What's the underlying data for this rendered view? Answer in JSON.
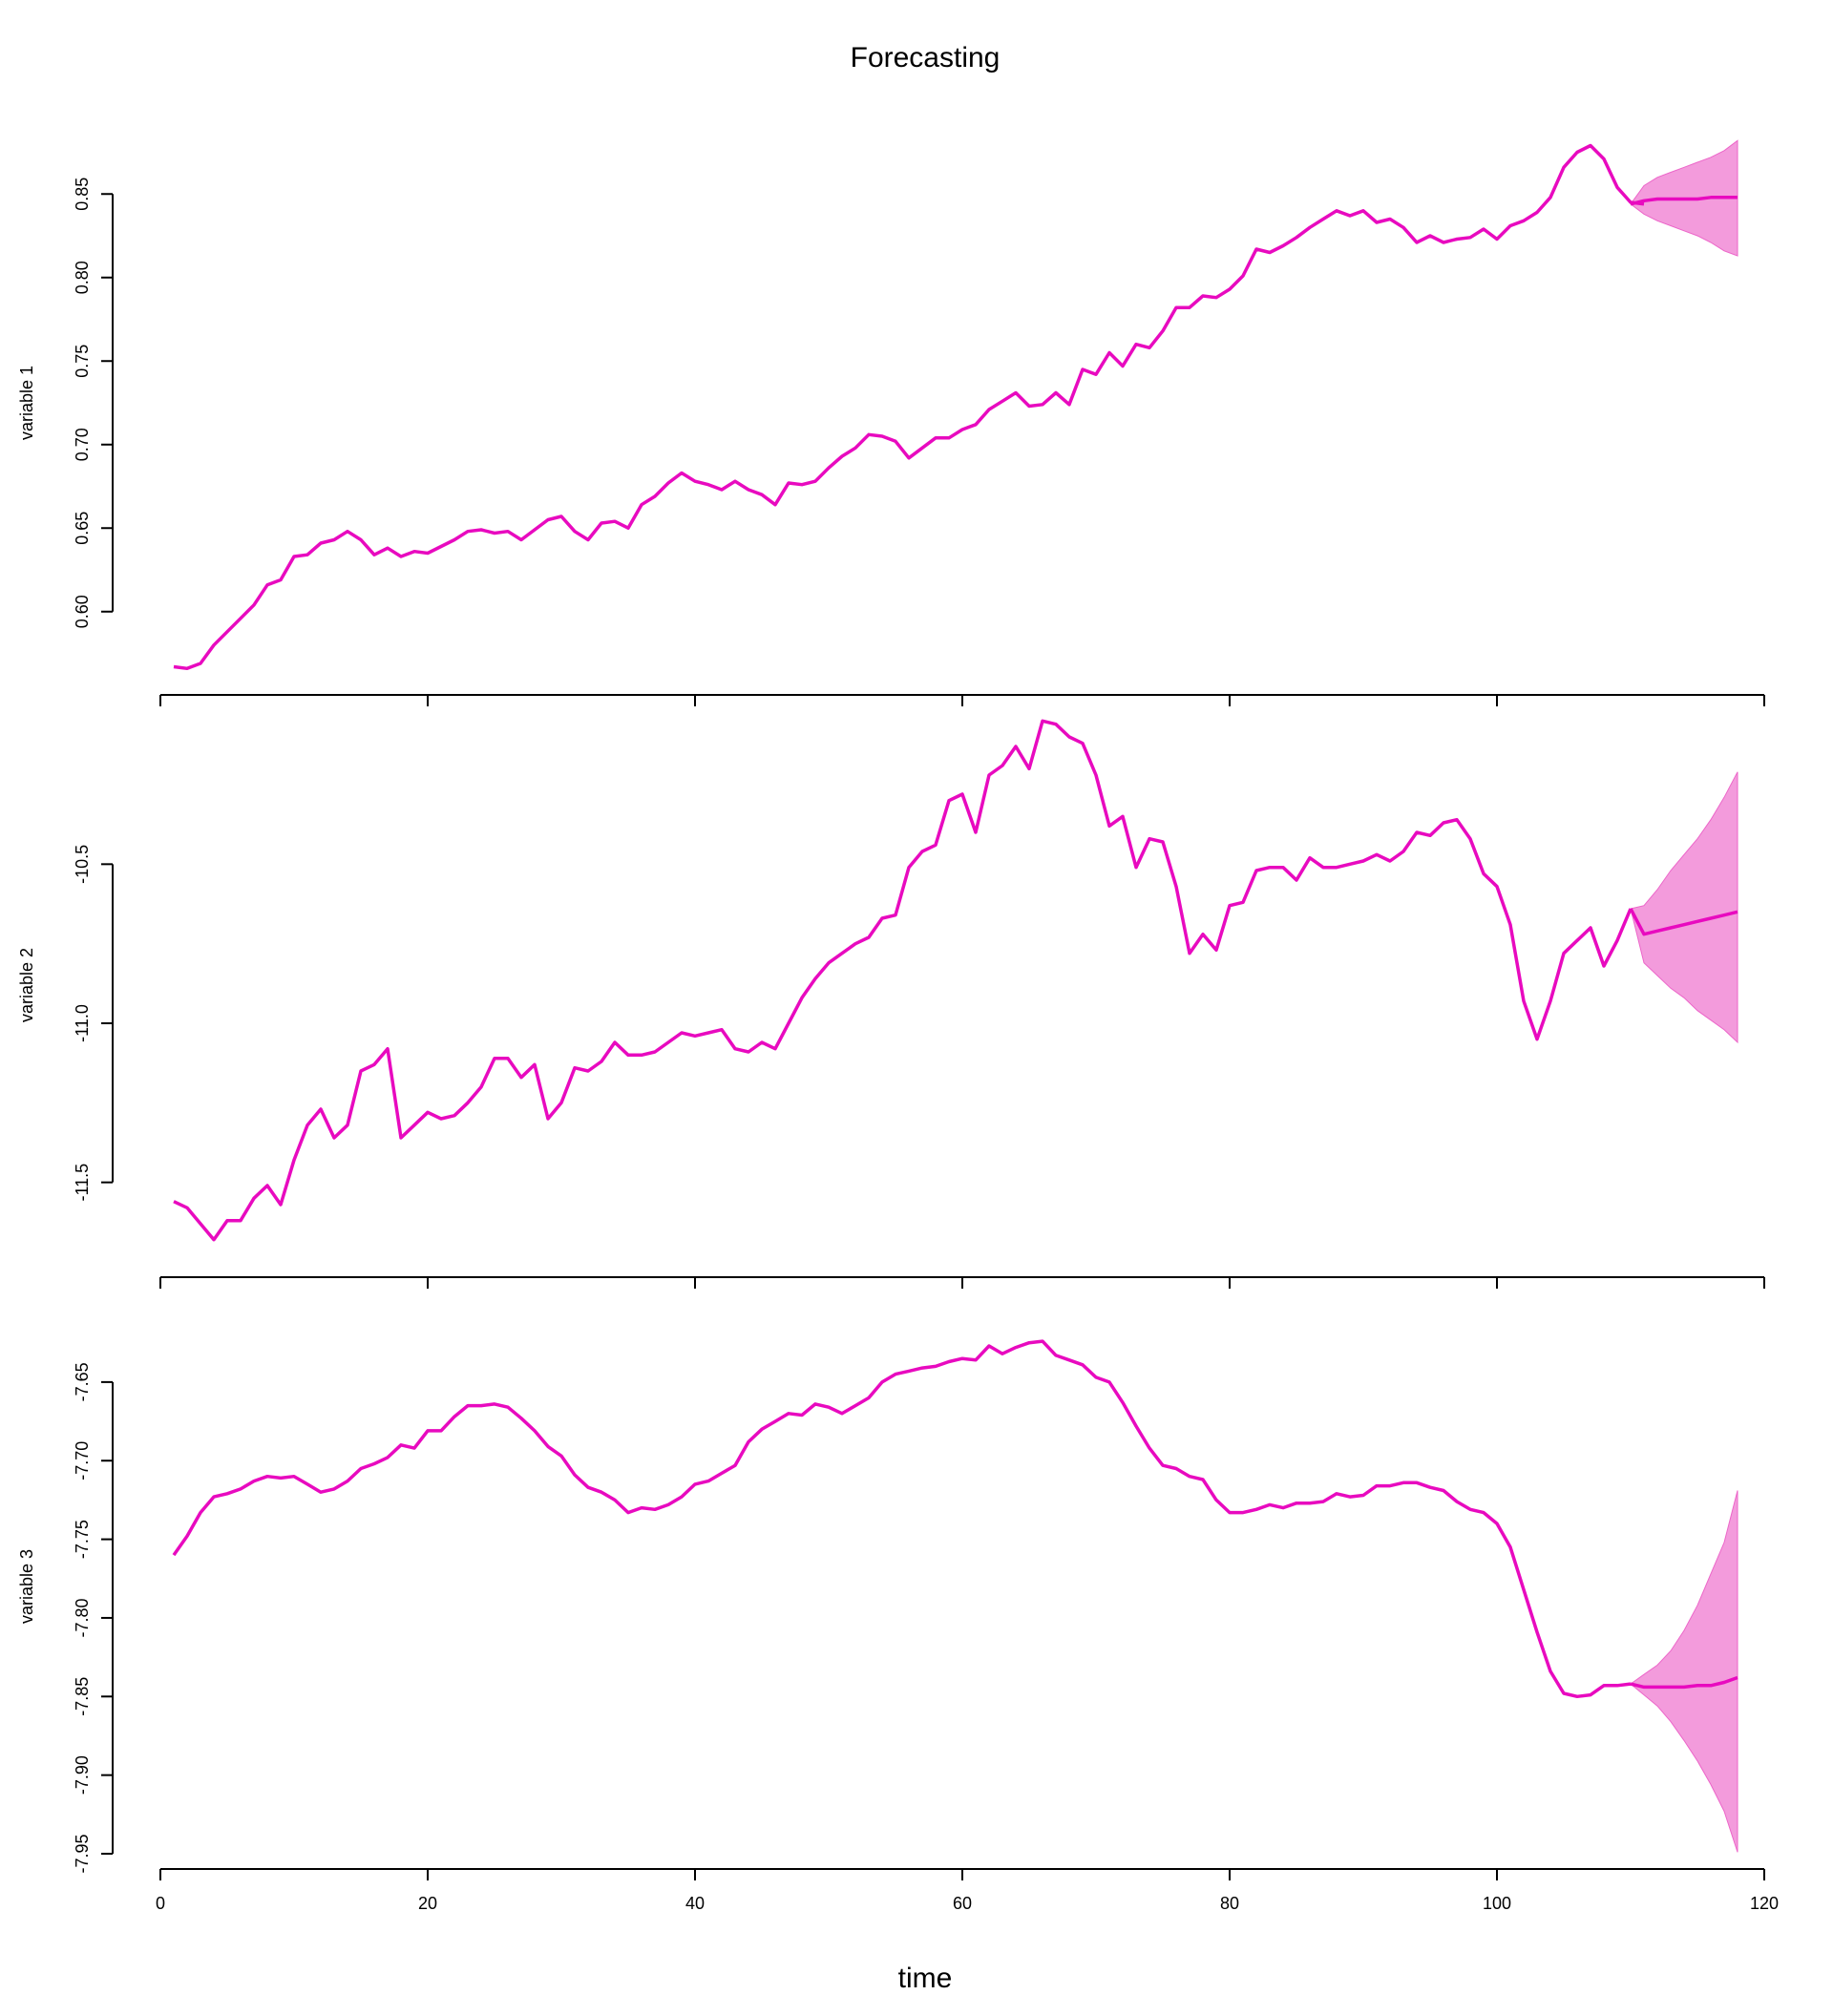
{
  "chart_data": {
    "type": "line",
    "title": "Forecasting",
    "xlabel": "time",
    "xlim": [
      0,
      120
    ],
    "xticks": [
      0,
      20,
      40,
      60,
      80,
      100,
      120
    ],
    "line_color": "#E80ABF",
    "band_color": "#EC66C9",
    "grid": false,
    "panels": [
      {
        "ylabel": "variable 1",
        "ylim": [
          0.565,
          0.885
        ],
        "yticks": [
          0.6,
          0.65,
          0.7,
          0.75,
          0.8,
          0.85
        ],
        "ytick_labels": [
          "0.60",
          "0.65",
          "0.70",
          "0.75",
          "0.80",
          "0.85"
        ],
        "history_x_start": 1,
        "history": [
          0.567,
          0.566,
          0.569,
          0.58,
          0.588,
          0.596,
          0.604,
          0.616,
          0.619,
          0.633,
          0.634,
          0.641,
          0.643,
          0.648,
          0.643,
          0.634,
          0.638,
          0.633,
          0.636,
          0.635,
          0.639,
          0.643,
          0.648,
          0.649,
          0.647,
          0.648,
          0.643,
          0.649,
          0.655,
          0.657,
          0.648,
          0.643,
          0.653,
          0.654,
          0.65,
          0.664,
          0.669,
          0.677,
          0.683,
          0.678,
          0.676,
          0.673,
          0.678,
          0.673,
          0.67,
          0.664,
          0.677,
          0.676,
          0.678,
          0.686,
          0.693,
          0.698,
          0.706,
          0.705,
          0.702,
          0.692,
          0.698,
          0.704,
          0.704,
          0.709,
          0.712,
          0.721,
          0.726,
          0.731,
          0.723,
          0.724,
          0.731,
          0.724,
          0.745,
          0.742,
          0.755,
          0.747,
          0.76,
          0.758,
          0.768,
          0.782,
          0.782,
          0.789,
          0.788,
          0.793,
          0.801,
          0.817,
          0.815,
          0.819,
          0.824,
          0.83,
          0.835,
          0.84,
          0.837,
          0.84,
          0.833,
          0.835,
          0.83,
          0.821,
          0.825,
          0.821,
          0.823,
          0.824,
          0.829,
          0.823,
          0.831,
          0.834,
          0.839,
          0.848,
          0.866,
          0.875,
          0.879,
          0.871,
          0.854,
          0.845,
          0.844
        ],
        "forecast_x_start": 110,
        "forecast": [
          0.844,
          0.846,
          0.847,
          0.847,
          0.847,
          0.847,
          0.848,
          0.848,
          0.848
        ],
        "lower": [
          0.844,
          0.838,
          0.834,
          0.831,
          0.828,
          0.825,
          0.821,
          0.816,
          0.813
        ],
        "upper": [
          0.844,
          0.855,
          0.86,
          0.863,
          0.866,
          0.869,
          0.872,
          0.876,
          0.882
        ]
      },
      {
        "ylabel": "variable 2",
        "ylim": [
          -11.72,
          -10.04
        ],
        "yticks": [
          -11.5,
          -11.0,
          -10.5
        ],
        "ytick_labels": [
          "-11.5",
          "-11.0",
          "-10.5"
        ],
        "history_x_start": 1,
        "history": [
          -11.56,
          -11.58,
          -11.63,
          -11.68,
          -11.62,
          -11.62,
          -11.55,
          -11.51,
          -11.57,
          -11.43,
          -11.32,
          -11.27,
          -11.36,
          -11.32,
          -11.15,
          -11.13,
          -11.08,
          -11.36,
          -11.32,
          -11.28,
          -11.3,
          -11.29,
          -11.25,
          -11.2,
          -11.11,
          -11.11,
          -11.17,
          -11.13,
          -11.3,
          -11.25,
          -11.14,
          -11.15,
          -11.12,
          -11.06,
          -11.1,
          -11.1,
          -11.09,
          -11.06,
          -11.03,
          -11.04,
          -11.03,
          -11.02,
          -11.08,
          -11.09,
          -11.06,
          -11.08,
          -11.0,
          -10.92,
          -10.86,
          -10.81,
          -10.78,
          -10.75,
          -10.73,
          -10.67,
          -10.66,
          -10.51,
          -10.46,
          -10.44,
          -10.3,
          -10.28,
          -10.4,
          -10.22,
          -10.19,
          -10.13,
          -10.2,
          -10.05,
          -10.06,
          -10.1,
          -10.12,
          -10.22,
          -10.38,
          -10.35,
          -10.51,
          -10.42,
          -10.43,
          -10.57,
          -10.78,
          -10.72,
          -10.77,
          -10.63,
          -10.62,
          -10.52,
          -10.51,
          -10.51,
          -10.55,
          -10.48,
          -10.51,
          -10.51,
          -10.5,
          -10.49,
          -10.47,
          -10.49,
          -10.46,
          -10.4,
          -10.41,
          -10.37,
          -10.36,
          -10.42,
          -10.53,
          -10.57,
          -10.69,
          -10.93,
          -11.05,
          -10.93,
          -10.78,
          -10.74,
          -10.7,
          -10.82,
          -10.74,
          -10.64
        ],
        "forecast_x_start": 110,
        "forecast": [
          -10.64,
          -10.72,
          -10.71,
          -10.7,
          -10.69,
          -10.68,
          -10.67,
          -10.66,
          -10.65
        ],
        "lower": [
          -10.64,
          -10.81,
          -10.85,
          -10.89,
          -10.92,
          -10.96,
          -10.99,
          -11.02,
          -11.06
        ],
        "upper": [
          -10.64,
          -10.63,
          -10.58,
          -10.52,
          -10.47,
          -10.42,
          -10.36,
          -10.29,
          -10.21
        ]
      },
      {
        "ylabel": "variable 3",
        "ylim": [
          -7.95,
          -7.61
        ],
        "yticks": [
          -7.95,
          -7.9,
          -7.85,
          -7.8,
          -7.75,
          -7.7,
          -7.65
        ],
        "ytick_labels": [
          "-7.95",
          "-7.90",
          "-7.85",
          "-7.80",
          "-7.75",
          "-7.70",
          "-7.65"
        ],
        "history_x_start": 1,
        "history": [
          -7.76,
          -7.748,
          -7.733,
          -7.723,
          -7.721,
          -7.718,
          -7.713,
          -7.71,
          -7.711,
          -7.71,
          -7.715,
          -7.72,
          -7.718,
          -7.713,
          -7.705,
          -7.702,
          -7.698,
          -7.69,
          -7.692,
          -7.681,
          -7.681,
          -7.672,
          -7.665,
          -7.665,
          -7.664,
          -7.666,
          -7.673,
          -7.681,
          -7.691,
          -7.697,
          -7.709,
          -7.717,
          -7.72,
          -7.725,
          -7.733,
          -7.73,
          -7.731,
          -7.728,
          -7.723,
          -7.715,
          -7.713,
          -7.708,
          -7.703,
          -7.688,
          -7.68,
          -7.675,
          -7.67,
          -7.671,
          -7.664,
          -7.666,
          -7.67,
          -7.665,
          -7.66,
          -7.65,
          -7.645,
          -7.643,
          -7.641,
          -7.64,
          -7.637,
          -7.635,
          -7.636,
          -7.627,
          -7.632,
          -7.628,
          -7.625,
          -7.624,
          -7.633,
          -7.636,
          -7.639,
          -7.647,
          -7.65,
          -7.663,
          -7.678,
          -7.692,
          -7.703,
          -7.705,
          -7.71,
          -7.712,
          -7.725,
          -7.733,
          -7.733,
          -7.731,
          -7.728,
          -7.73,
          -7.727,
          -7.727,
          -7.726,
          -7.721,
          -7.723,
          -7.722,
          -7.716,
          -7.716,
          -7.714,
          -7.714,
          -7.717,
          -7.719,
          -7.726,
          -7.731,
          -7.733,
          -7.74,
          -7.755,
          -7.782,
          -7.809,
          -7.834,
          -7.848,
          -7.85,
          -7.849,
          -7.843,
          -7.843,
          -7.842
        ],
        "forecast_x_start": 110,
        "forecast": [
          -7.842,
          -7.844,
          -7.844,
          -7.844,
          -7.844,
          -7.843,
          -7.843,
          -7.841,
          -7.838
        ],
        "lower": [
          -7.842,
          -7.849,
          -7.856,
          -7.866,
          -7.878,
          -7.891,
          -7.906,
          -7.923,
          -7.949
        ],
        "upper": [
          -7.842,
          -7.836,
          -7.83,
          -7.821,
          -7.808,
          -7.792,
          -7.772,
          -7.752,
          -7.719
        ]
      }
    ]
  }
}
